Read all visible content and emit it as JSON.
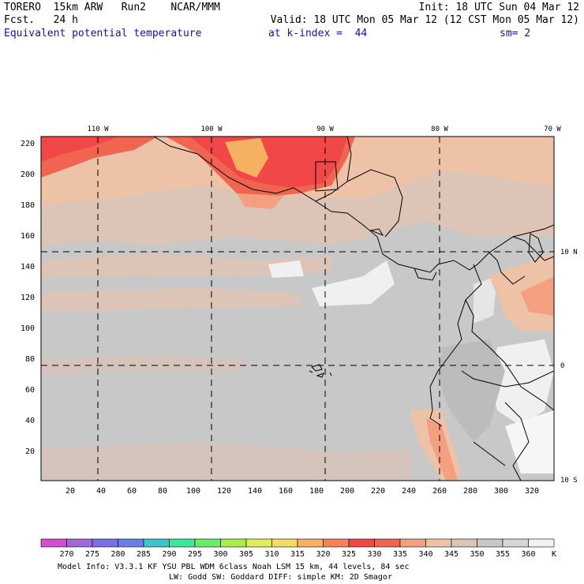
{
  "header": {
    "line1_left": "TORERO  15km ARW   Run2    NCAR/MMM",
    "line1_right": "Init: 18 UTC Sun 04 Mar 12",
    "line2_left": "Fcst.   24 h",
    "line2_right": "Valid: 18 UTC Mon 05 Mar 12 (12 CST Mon 05 Mar 12)",
    "line3_field": "Equivalent potential temperature",
    "line3_level": "at k-index =  44",
    "line3_smooth": "sm= 2"
  },
  "map": {
    "top_lon_labels": [
      "110 W",
      "100 W",
      "90 W",
      "80 W",
      "70 W"
    ],
    "right_lat_labels": [
      "10 N",
      "0",
      "10 S"
    ],
    "left_axis_ticks": [
      "220",
      "200",
      "180",
      "160",
      "140",
      "120",
      "100",
      "80",
      "60",
      "40",
      "20"
    ],
    "bottom_axis_ticks": [
      "20",
      "40",
      "60",
      "80",
      "100",
      "120",
      "140",
      "160",
      "180",
      "200",
      "220",
      "240",
      "260",
      "280",
      "300",
      "320"
    ]
  },
  "colorbar": {
    "labels": [
      "270",
      "275",
      "280",
      "285",
      "290",
      "295",
      "300",
      "305",
      "310",
      "315",
      "320",
      "325",
      "330",
      "335",
      "340",
      "345",
      "350",
      "355",
      "360"
    ],
    "unit": "K",
    "colors": [
      "#d24fd2",
      "#a268d8",
      "#7a70e6",
      "#6a80e6",
      "#3cc6c6",
      "#3ce69a",
      "#6aee6a",
      "#a6ee4a",
      "#e0ee5a",
      "#f6dc60",
      "#f6b062",
      "#f6825a",
      "#f04848",
      "#f06450",
      "#f4a080",
      "#eec2a6",
      "#dcc4b6",
      "#c8c8c8",
      "#d6d6d6",
      "#f2f2f2"
    ]
  },
  "footer": {
    "line1": "Model Info: V3.3.1   KF     YSU PBL  WDM 6class  Noah LSM  15 km,   44 levels,   84 sec",
    "line2": "LW: Godd SW: Goddard DIFF: simple KM: 2D Smagor"
  }
}
